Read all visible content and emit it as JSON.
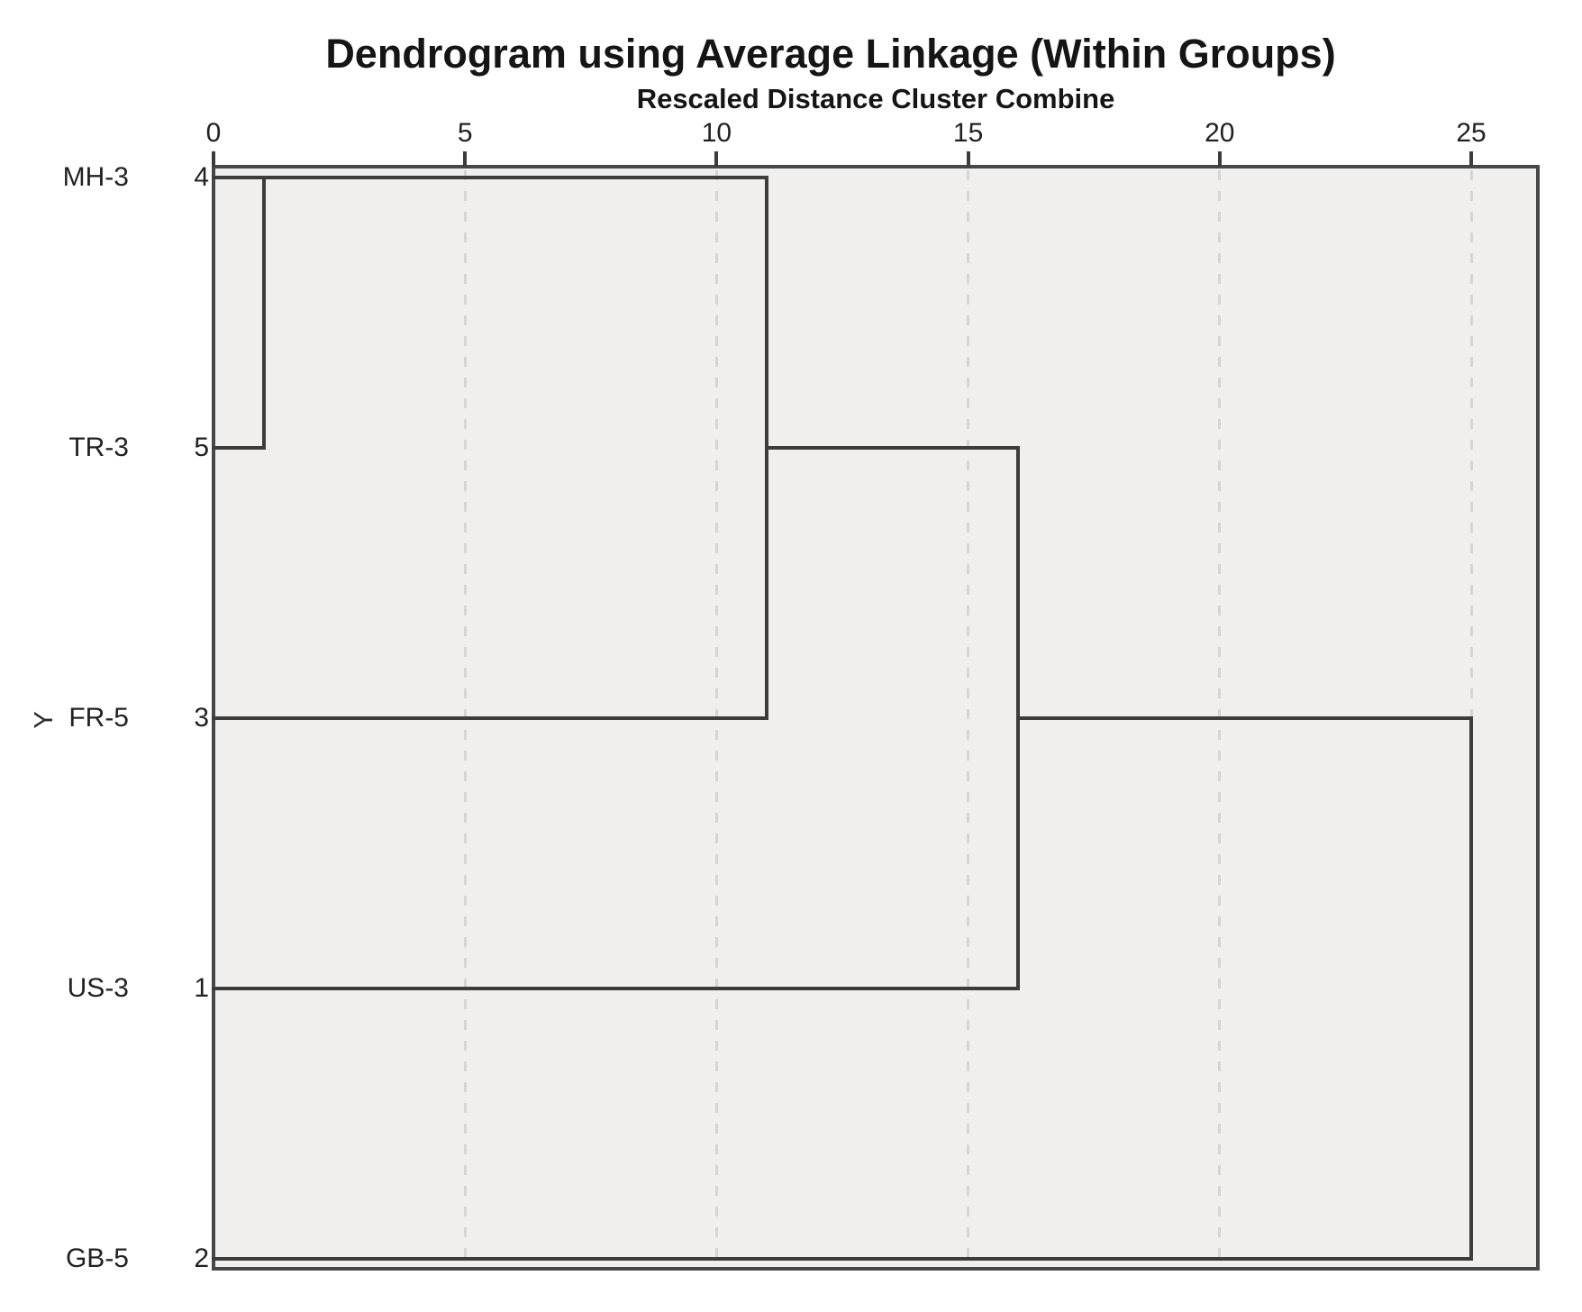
{
  "header": {
    "title": "Dendrogram using Average Linkage (Within Groups)",
    "subtitle": "Rescaled Distance Cluster Combine"
  },
  "chart_data": {
    "type": "dendrogram",
    "title": "Dendrogram using Average Linkage (Within Groups)",
    "xlabel": "Rescaled Distance Cluster Combine",
    "ylabel": "Y",
    "x_ticks": [
      0,
      5,
      10,
      15,
      20,
      25
    ],
    "xlim": [
      0,
      26.3
    ],
    "grid": "vertical dashed gridlines at each x tick inside plot, none at 0",
    "legend": "none",
    "cases": [
      {
        "label": "MH-3",
        "case_number": 4
      },
      {
        "label": "TR-3",
        "case_number": 5
      },
      {
        "label": "FR-5",
        "case_number": 3
      },
      {
        "label": "US-3",
        "case_number": 1
      },
      {
        "label": "GB-5",
        "case_number": 2
      }
    ],
    "merges": [
      {
        "members": [
          "MH-3",
          "TR-3"
        ],
        "rescaled_distance": 1
      },
      {
        "members": [
          "MH-3+TR-3",
          "FR-5"
        ],
        "rescaled_distance": 11
      },
      {
        "members": [
          "MH-3+TR-3+FR-5",
          "US-3"
        ],
        "rescaled_distance": 16
      },
      {
        "members": [
          "MH-3+TR-3+FR-5+US-3",
          "GB-5"
        ],
        "rescaled_distance": 25
      }
    ],
    "segments_h": [
      {
        "row": 0,
        "x1": 0,
        "x2": 11
      },
      {
        "row": 1,
        "x1": 0,
        "x2": 1
      },
      {
        "row": 1,
        "x1": 11,
        "x2": 16
      },
      {
        "row": 2,
        "x1": 0,
        "x2": 11
      },
      {
        "row": 2,
        "x1": 16,
        "x2": 25
      },
      {
        "row": 3,
        "x1": 0,
        "x2": 16
      },
      {
        "row": 4,
        "x1": 0,
        "x2": 25
      }
    ],
    "segments_v": [
      {
        "x": 1,
        "row1": 0,
        "row2": 1
      },
      {
        "x": 11,
        "row1": 0,
        "row2": 2
      },
      {
        "x": 16,
        "row1": 1,
        "row2": 3
      },
      {
        "x": 25,
        "row1": 2,
        "row2": 4
      }
    ],
    "colors": {
      "line": "#3c3c3c",
      "plot_border": "#474747",
      "plot_background": "#f0efee",
      "gridline": "#d5d5d2",
      "text": "#222222",
      "page_background": "#ffffff"
    }
  }
}
